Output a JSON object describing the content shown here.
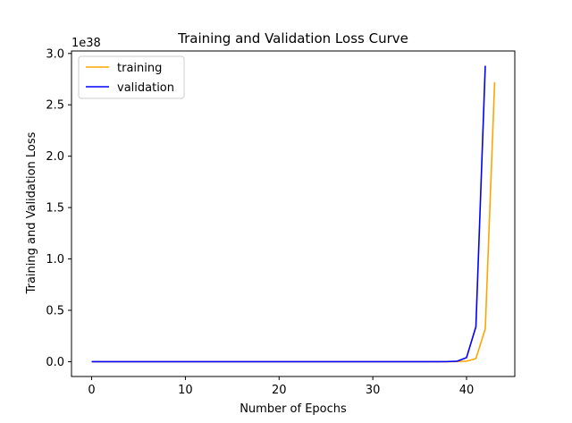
{
  "chart_data": {
    "type": "line",
    "title": "Training and Validation Loss Curve",
    "xlabel": "Number of Epochs",
    "ylabel": "Training and Validation Loss",
    "y_multiplier": "1e38",
    "xlim": [
      -2.15,
      45.15
    ],
    "ylim": [
      -0.144,
      3.024
    ],
    "x_ticks": [
      0,
      10,
      20,
      30,
      40
    ],
    "x_tick_labels": [
      "0",
      "10",
      "20",
      "30",
      "40"
    ],
    "y_ticks": [
      0,
      0.5,
      1.0,
      1.5,
      2.0,
      2.5,
      3.0
    ],
    "y_tick_labels": [
      "0.0",
      "0.5",
      "1.0",
      "1.5",
      "2.0",
      "2.5",
      "3.0"
    ],
    "grid": false,
    "legend_position": "top-left",
    "series": [
      {
        "name": "training",
        "color": "#ffa500",
        "x": [
          0,
          1,
          2,
          3,
          4,
          5,
          6,
          7,
          8,
          9,
          10,
          11,
          12,
          13,
          14,
          15,
          16,
          17,
          18,
          19,
          20,
          21,
          22,
          23,
          24,
          25,
          26,
          27,
          28,
          29,
          30,
          31,
          32,
          33,
          34,
          35,
          36,
          37,
          38,
          39,
          40,
          41,
          42,
          43
        ],
        "values": [
          0,
          0,
          0,
          0,
          0,
          0,
          0,
          0,
          0,
          0,
          0,
          0,
          0,
          0,
          0,
          0,
          0,
          0,
          0,
          0,
          0,
          0,
          0,
          0,
          0,
          0,
          0,
          0,
          0,
          0,
          0,
          0,
          0,
          0,
          0,
          0,
          0,
          0,
          0,
          0.002,
          0.005,
          0.03,
          0.32,
          2.72
        ]
      },
      {
        "name": "validation",
        "color": "#0000ff",
        "x": [
          0,
          1,
          2,
          3,
          4,
          5,
          6,
          7,
          8,
          9,
          10,
          11,
          12,
          13,
          14,
          15,
          16,
          17,
          18,
          19,
          20,
          21,
          22,
          23,
          24,
          25,
          26,
          27,
          28,
          29,
          30,
          31,
          32,
          33,
          34,
          35,
          36,
          37,
          38,
          39,
          40,
          41,
          42
        ],
        "values": [
          0,
          0,
          0,
          0,
          0,
          0,
          0,
          0,
          0,
          0,
          0,
          0,
          0,
          0,
          0,
          0,
          0,
          0,
          0,
          0,
          0,
          0,
          0,
          0,
          0,
          0,
          0,
          0,
          0,
          0,
          0,
          0,
          0,
          0,
          0,
          0,
          0,
          0,
          0.001,
          0.005,
          0.04,
          0.34,
          2.88
        ]
      }
    ]
  }
}
